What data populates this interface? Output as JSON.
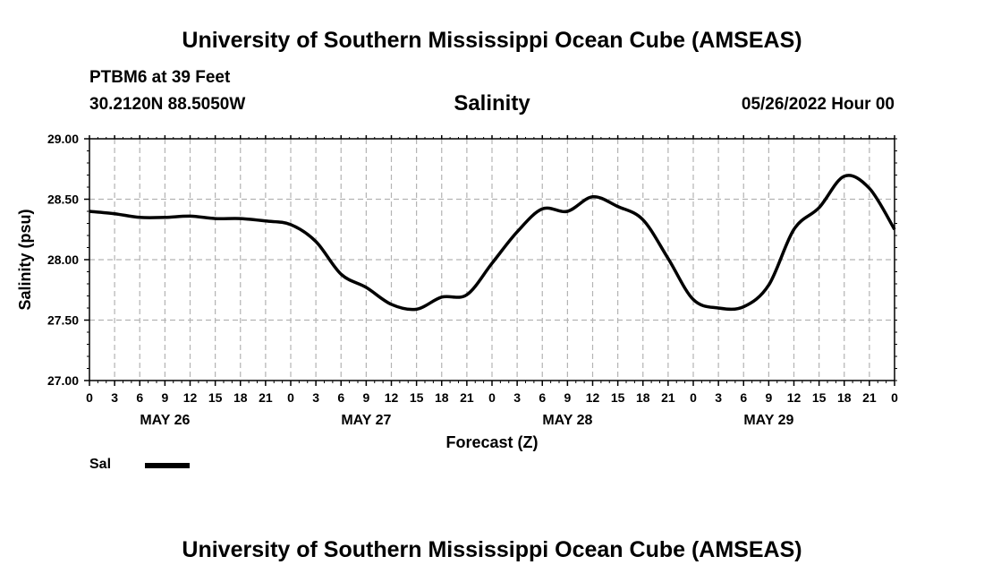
{
  "header": {
    "title": "University of Southern Mississippi Ocean Cube (AMSEAS)",
    "station": "PTBM6 at 39 Feet",
    "coords": "30.2120N  88.5050W",
    "run_time": "05/26/2022 Hour 00"
  },
  "footer": {
    "title": "University of Southern Mississippi Ocean Cube (AMSEAS)"
  },
  "legend": {
    "label": "Sal"
  },
  "colors": {
    "line": "#000000",
    "grid": "#b3b3b3",
    "background": "#ffffff"
  },
  "chart_data": {
    "type": "line",
    "title": "Salinity",
    "xlabel": "Forecast (Z)",
    "ylabel": "Salinity (psu)",
    "ylim": [
      27.0,
      29.0
    ],
    "yticks": [
      "27.00",
      "27.50",
      "28.00",
      "28.50",
      "29.00"
    ],
    "xlim": [
      0,
      96
    ],
    "x_tick_labels": [
      "0",
      "3",
      "6",
      "9",
      "12",
      "15",
      "18",
      "21",
      "0",
      "3",
      "6",
      "9",
      "12",
      "15",
      "18",
      "21",
      "0",
      "3",
      "6",
      "9",
      "12",
      "15",
      "18",
      "21",
      "0",
      "3",
      "6",
      "9",
      "12",
      "15",
      "18",
      "21",
      "0"
    ],
    "date_labels": [
      {
        "hour": 9,
        "label": "MAY 26"
      },
      {
        "hour": 33,
        "label": "MAY 27"
      },
      {
        "hour": 57,
        "label": "MAY 28"
      },
      {
        "hour": 81,
        "label": "MAY 29"
      }
    ],
    "series": [
      {
        "name": "Sal",
        "x": [
          0,
          3,
          6,
          9,
          12,
          15,
          18,
          21,
          24,
          27,
          30,
          33,
          36,
          39,
          42,
          45,
          48,
          51,
          54,
          57,
          60,
          63,
          66,
          69,
          72,
          75,
          78,
          81,
          84,
          87,
          90,
          93,
          96
        ],
        "values": [
          28.4,
          28.38,
          28.35,
          28.35,
          28.36,
          28.34,
          28.34,
          28.32,
          28.29,
          28.15,
          27.88,
          27.77,
          27.63,
          27.59,
          27.69,
          27.71,
          27.97,
          28.23,
          28.42,
          28.4,
          28.52,
          28.44,
          28.33,
          28.01,
          27.67,
          27.6,
          27.61,
          27.79,
          28.25,
          28.43,
          28.69,
          28.59,
          28.25
        ]
      }
    ]
  }
}
